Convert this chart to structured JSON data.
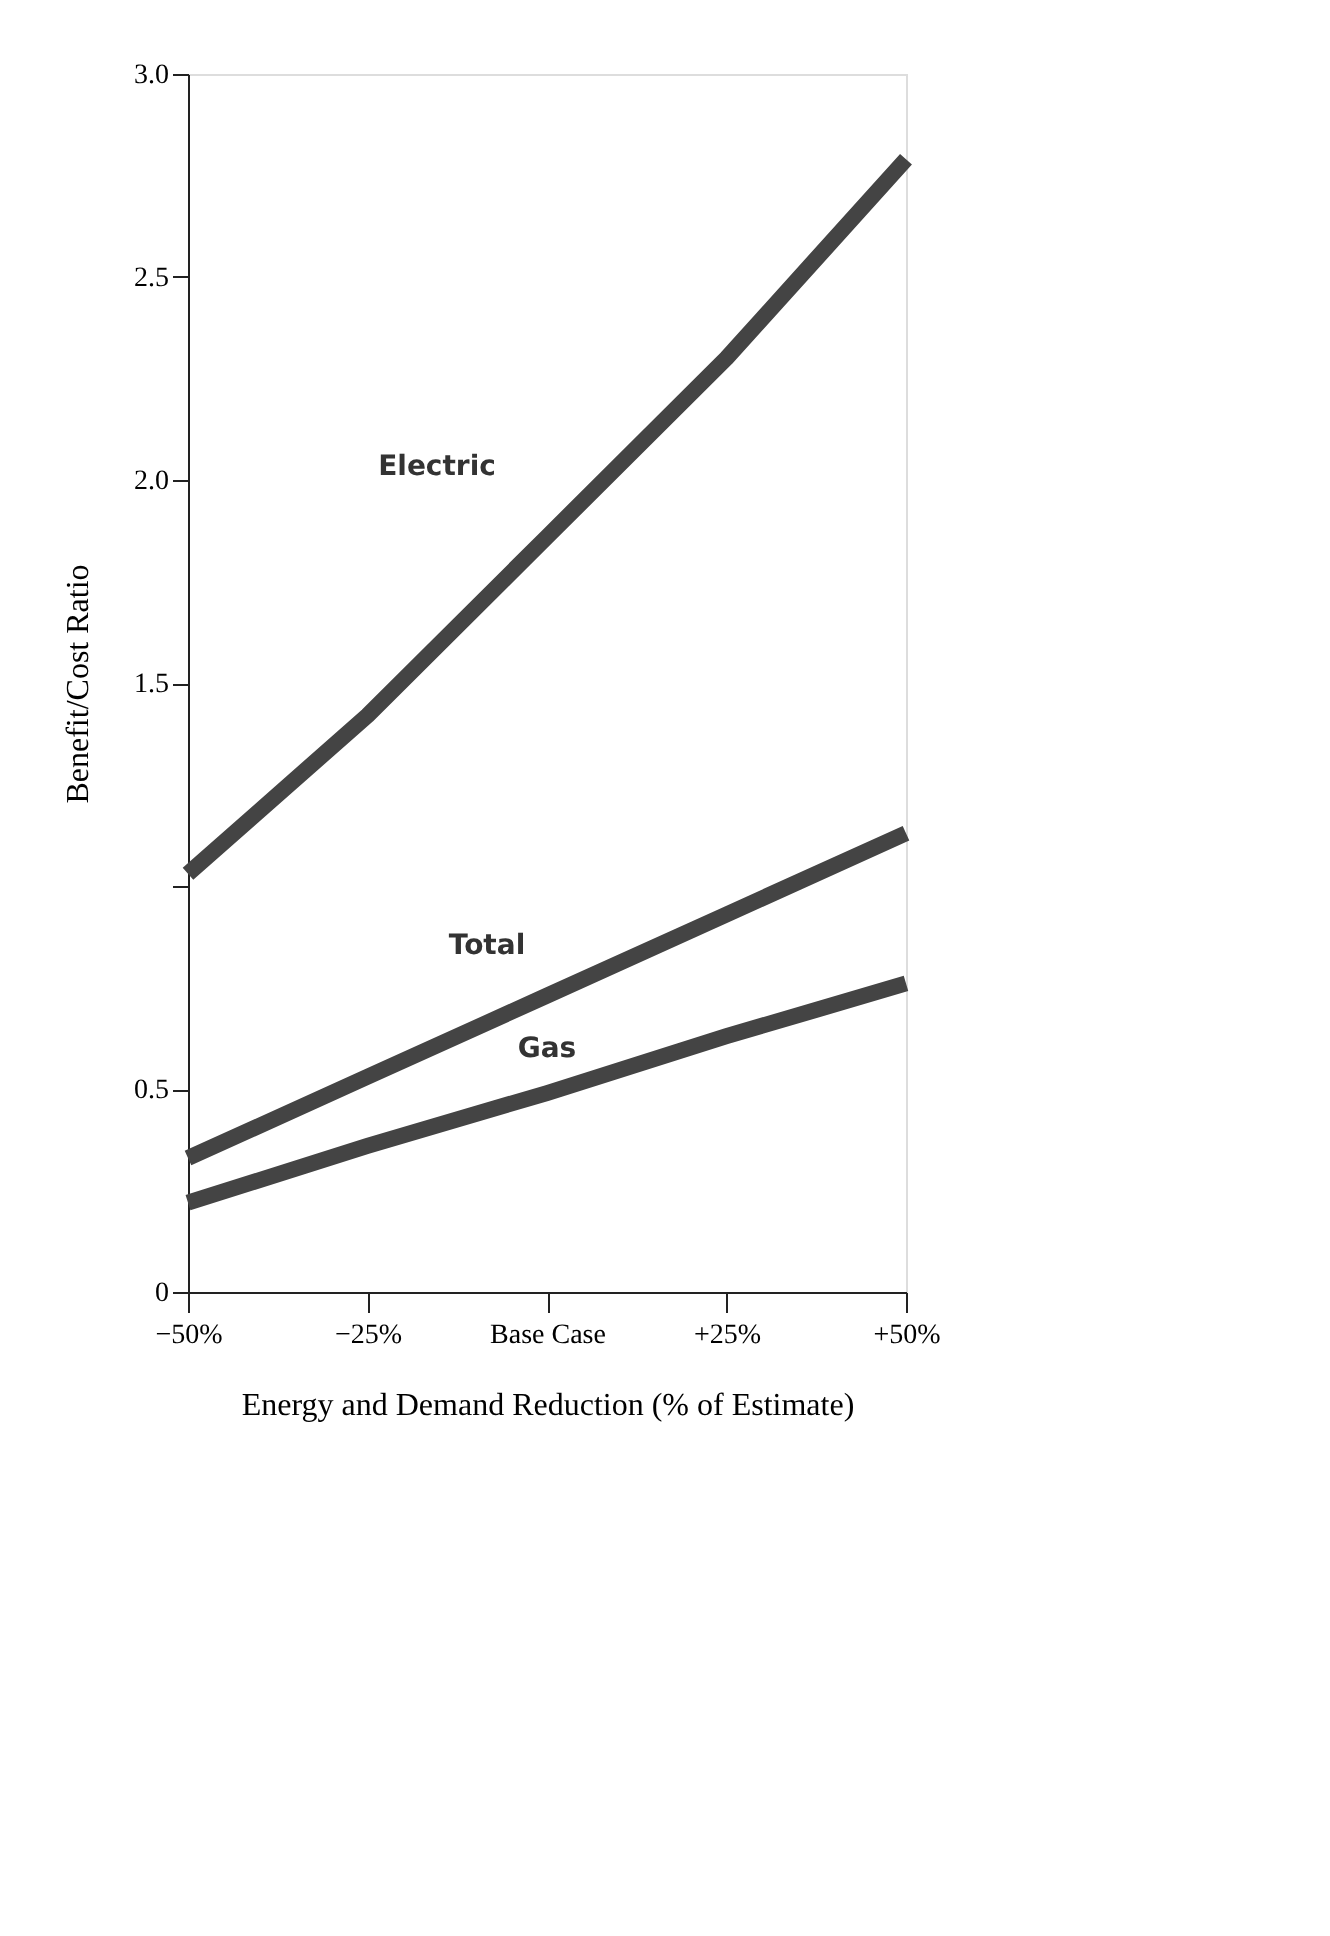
{
  "chart_data": {
    "type": "line",
    "xlabel": "Energy and Demand Reduction (% of Estimate)",
    "ylabel": "Benefit/Cost Ratio",
    "x": [
      -50,
      -25,
      0,
      25,
      50
    ],
    "series": [
      {
        "name": "Electric",
        "color": "#444444",
        "values": [
          1.03,
          1.42,
          1.86,
          2.3,
          2.79
        ]
      },
      {
        "name": "Total",
        "color": "#444444",
        "values": [
          0.33,
          0.53,
          0.73,
          0.93,
          1.13
        ]
      },
      {
        "name": "Gas",
        "color": "#444444",
        "values": [
          0.22,
          0.36,
          0.49,
          0.63,
          0.76
        ]
      }
    ],
    "xlim": [
      -50,
      50
    ],
    "xticks": [
      {
        "value": -50,
        "label": "−50%"
      },
      {
        "value": -25,
        "label": "−25%"
      },
      {
        "value": 0,
        "label": "Base Case"
      },
      {
        "value": 25,
        "label": "+25%"
      },
      {
        "value": 50,
        "label": "+50%"
      }
    ],
    "ylim": [
      0,
      3
    ],
    "yticks": [
      0,
      0.5,
      {
        "value": 1,
        "label": null
      },
      1.5,
      {
        "value": 2,
        "label": "2.0"
      },
      2.5,
      {
        "value": 3,
        "label": "3.0"
      }
    ],
    "grid": false,
    "legend": false,
    "marker": "none",
    "line_style": "solid"
  }
}
